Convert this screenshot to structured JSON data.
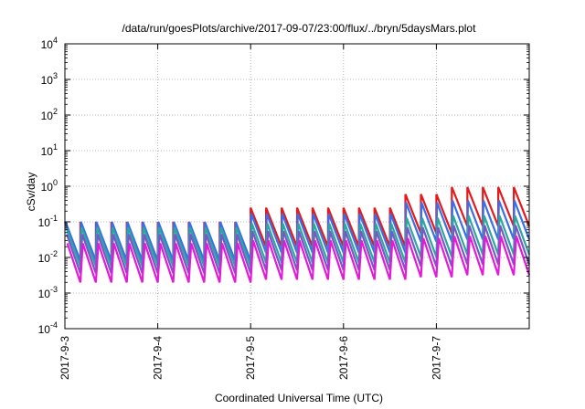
{
  "chart_data": {
    "type": "line",
    "title": "/data/run/goesPlots/archive/2017-09-07/23:00/flux/../bryn/5daysMars.plot",
    "xlabel": "Coordinated Universal Time (UTC)",
    "ylabel": "cSv/day",
    "xlim": [
      "2017-09-03",
      "2017-09-08"
    ],
    "ylim": [
      0.0001,
      10000
    ],
    "yscale": "log",
    "grid": true,
    "x_ticks": [
      "2017-9-3",
      "2017-9-4",
      "2017-9-5",
      "2017-9-6",
      "2017-9-7"
    ],
    "y_ticks": [
      {
        "base": "10",
        "exp": "-4",
        "value": 0.0001
      },
      {
        "base": "10",
        "exp": "-3",
        "value": 0.001
      },
      {
        "base": "10",
        "exp": "-2",
        "value": 0.01
      },
      {
        "base": "10",
        "exp": "-1",
        "value": 0.1
      },
      {
        "base": "10",
        "exp": "0",
        "value": 1
      },
      {
        "base": "10",
        "exp": "1",
        "value": 10
      },
      {
        "base": "10",
        "exp": "2",
        "value": 100
      },
      {
        "base": "10",
        "exp": "3",
        "value": 1000
      },
      {
        "base": "10",
        "exp": "4",
        "value": 10000
      }
    ],
    "sawtooth": {
      "period_hours": 4,
      "amplitude_decades": 1.1,
      "start": "2017-09-03T00:00",
      "end": "2017-09-08T00:00"
    },
    "series": [
      {
        "color": "#e41a1c",
        "peaks": [
          {
            "from": "2017-09-03T00:00",
            "value": 0.1
          },
          {
            "from": "2017-09-05T00:00",
            "value": 0.25
          },
          {
            "from": "2017-09-06T14:00",
            "value": 0.6
          },
          {
            "from": "2017-09-07T04:00",
            "value": 0.95
          }
        ]
      },
      {
        "color": "#3a6fe8",
        "peaks": [
          {
            "from": "2017-09-03T00:00",
            "value": 0.1
          },
          {
            "from": "2017-09-05T00:00",
            "value": 0.17
          },
          {
            "from": "2017-09-06T14:00",
            "value": 0.35
          },
          {
            "from": "2017-09-07T04:00",
            "value": 0.4
          }
        ]
      },
      {
        "color": "#2ca7a0",
        "peaks": [
          {
            "from": "2017-09-03T00:00",
            "value": 0.07
          },
          {
            "from": "2017-09-05T00:00",
            "value": 0.09
          },
          {
            "from": "2017-09-06T14:00",
            "value": 0.13
          },
          {
            "from": "2017-09-07T04:00",
            "value": 0.15
          }
        ]
      },
      {
        "color": "#7a56c6",
        "peaks": [
          {
            "from": "2017-09-03T00:00",
            "value": 0.045
          },
          {
            "from": "2017-09-05T00:00",
            "value": 0.055
          },
          {
            "from": "2017-09-06T14:00",
            "value": 0.07
          },
          {
            "from": "2017-09-07T04:00",
            "value": 0.08
          }
        ]
      },
      {
        "color": "#e21bd8",
        "peaks": [
          {
            "from": "2017-09-03T00:00",
            "value": 0.025
          },
          {
            "from": "2017-09-05T00:00",
            "value": 0.03
          },
          {
            "from": "2017-09-06T14:00",
            "value": 0.035
          },
          {
            "from": "2017-09-07T04:00",
            "value": 0.04
          }
        ]
      }
    ]
  }
}
